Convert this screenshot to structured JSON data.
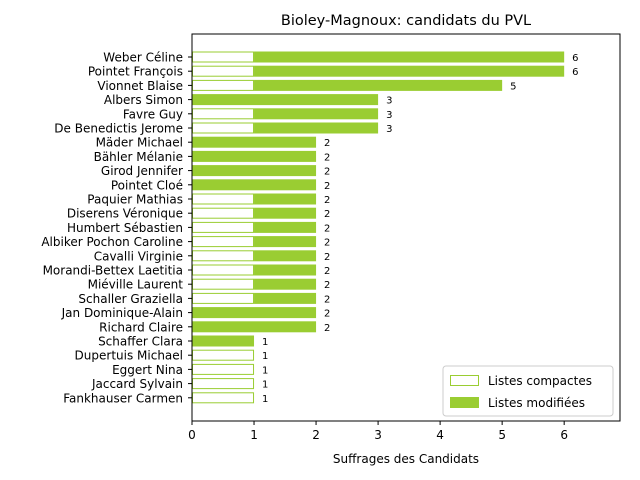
{
  "chart_data": {
    "type": "bar",
    "orientation": "horizontal",
    "stacked": true,
    "title": "Bioley-Magnoux: candidats du PVL",
    "xlabel": "Suffrages des Candidats",
    "ylabel": "",
    "xlim": [
      0,
      6.9
    ],
    "xticks": [
      0,
      1,
      2,
      3,
      4,
      5,
      6
    ],
    "grid": false,
    "legend_position": "lower-right",
    "categories": [
      "Weber Céline",
      "Pointet François",
      "Vionnet Blaise",
      "Albers Simon",
      "Favre Guy",
      "De Benedictis Jerome",
      "Mäder Michael",
      "Bähler Mélanie",
      "Girod Jennifer",
      "Pointet Cloé",
      "Paquier Mathias",
      "Diserens Véronique",
      "Humbert Sébastien",
      "Albiker Pochon Caroline",
      "Cavalli Virginie",
      "Morandi-Bettex Laetitia",
      "Miéville Laurent",
      "Schaller Graziella",
      "Jan Dominique-Alain",
      "Richard Claire",
      "Schaffer Clara",
      "Dupertuis Michael",
      "Eggert Nina",
      "Jaccard Sylvain",
      "Fankhauser Carmen"
    ],
    "series": [
      {
        "name": "Listes compactes",
        "color": "#9acd32",
        "style": "outline",
        "values": [
          1,
          1,
          1,
          0,
          1,
          1,
          0,
          0,
          0,
          0,
          1,
          1,
          1,
          1,
          1,
          1,
          1,
          1,
          0,
          0,
          0,
          1,
          1,
          1,
          1
        ]
      },
      {
        "name": "Listes modifiées",
        "color": "#9acd32",
        "style": "filled",
        "values": [
          5,
          5,
          4,
          3,
          2,
          2,
          2,
          2,
          2,
          2,
          1,
          1,
          1,
          1,
          1,
          1,
          1,
          1,
          2,
          2,
          1,
          0,
          0,
          0,
          0
        ]
      }
    ],
    "totals": [
      6,
      6,
      5,
      3,
      3,
      3,
      2,
      2,
      2,
      2,
      2,
      2,
      2,
      2,
      2,
      2,
      2,
      2,
      2,
      2,
      1,
      1,
      1,
      1,
      1
    ]
  }
}
